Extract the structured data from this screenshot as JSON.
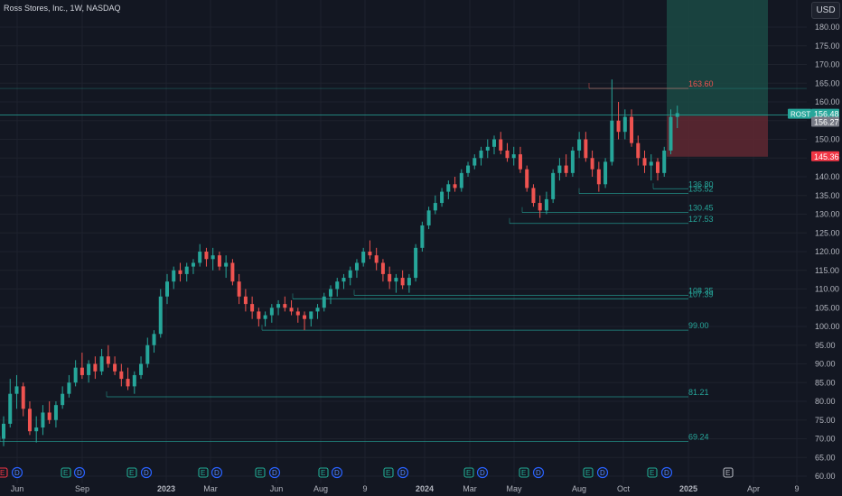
{
  "header": {
    "title": "Ross Stores, Inc., 1W, NASDAQ",
    "currency": "USD"
  },
  "colors": {
    "up": "#26a69a",
    "down": "#ef5350",
    "bg": "#131722",
    "grid": "#1e222d",
    "axis_text": "#b2b5be"
  },
  "events": [
    {
      "type": "E",
      "x": 3,
      "color": "red"
    },
    {
      "type": "D",
      "x": 19,
      "color": "blue"
    },
    {
      "type": "E",
      "x": 73,
      "color": "green"
    },
    {
      "type": "D",
      "x": 88,
      "color": "blue"
    },
    {
      "type": "E",
      "x": 146,
      "color": "green"
    },
    {
      "type": "D",
      "x": 162,
      "color": "blue"
    },
    {
      "type": "E",
      "x": 225,
      "color": "green"
    },
    {
      "type": "D",
      "x": 240,
      "color": "blue"
    },
    {
      "type": "E",
      "x": 288,
      "color": "green"
    },
    {
      "type": "D",
      "x": 304,
      "color": "blue"
    },
    {
      "type": "E",
      "x": 358,
      "color": "green"
    },
    {
      "type": "D",
      "x": 373,
      "color": "blue"
    },
    {
      "type": "E",
      "x": 430,
      "color": "green"
    },
    {
      "type": "D",
      "x": 446,
      "color": "blue"
    },
    {
      "type": "E",
      "x": 519,
      "color": "green"
    },
    {
      "type": "D",
      "x": 534,
      "color": "blue"
    },
    {
      "type": "E",
      "x": 580,
      "color": "green"
    },
    {
      "type": "D",
      "x": 596,
      "color": "blue"
    },
    {
      "type": "E",
      "x": 651,
      "color": "green"
    },
    {
      "type": "D",
      "x": 667,
      "color": "blue"
    },
    {
      "type": "E",
      "x": 722,
      "color": "green"
    },
    {
      "type": "D",
      "x": 738,
      "color": "blue"
    },
    {
      "type": "E",
      "x": 806,
      "color": "outline"
    }
  ],
  "chart_data": {
    "type": "candlestick",
    "symbol": "ROST",
    "ylim": [
      60,
      185
    ],
    "y_ticks": [
      180,
      175,
      170,
      165,
      160,
      155,
      150,
      145,
      140,
      135,
      130,
      125,
      120,
      115,
      110,
      105,
      100,
      95,
      90,
      85,
      80,
      75,
      70,
      65,
      60
    ],
    "x_ticks": [
      {
        "label": "Jun",
        "x": 19
      },
      {
        "label": "Sep",
        "x": 91
      },
      {
        "label": "2023",
        "x": 184
      },
      {
        "label": "Mar",
        "x": 233
      },
      {
        "label": "Jun",
        "x": 306
      },
      {
        "label": "Aug",
        "x": 355
      },
      {
        "label": "9",
        "x": 404
      },
      {
        "label": "2024",
        "x": 470
      },
      {
        "label": "Mar",
        "x": 520
      },
      {
        "label": "May",
        "x": 569
      },
      {
        "label": "Aug",
        "x": 641
      },
      {
        "label": "Oct",
        "x": 690
      },
      {
        "label": "2025",
        "x": 762
      },
      {
        "label": "Apr",
        "x": 834
      },
      {
        "label": "9",
        "x": 882
      }
    ],
    "candles": [
      [
        70,
        76,
        68,
        74
      ],
      [
        74,
        86,
        73,
        82
      ],
      [
        82,
        87,
        78,
        84
      ],
      [
        84,
        85,
        76,
        78
      ],
      [
        78,
        80,
        71,
        72
      ],
      [
        72,
        76,
        69,
        73
      ],
      [
        73,
        79,
        71,
        77
      ],
      [
        77,
        80,
        74,
        75
      ],
      [
        75,
        80,
        73,
        79
      ],
      [
        79,
        84,
        78,
        82
      ],
      [
        82,
        87,
        81,
        85
      ],
      [
        85,
        91,
        84,
        89
      ],
      [
        89,
        93,
        86,
        87
      ],
      [
        87,
        91,
        85,
        90
      ],
      [
        90,
        92,
        86,
        88
      ],
      [
        88,
        94,
        87,
        92
      ],
      [
        92,
        95,
        89,
        90
      ],
      [
        90,
        92,
        87,
        88
      ],
      [
        88,
        90,
        84,
        86
      ],
      [
        86,
        89,
        83,
        84
      ],
      [
        84,
        88,
        82,
        87
      ],
      [
        87,
        92,
        86,
        90
      ],
      [
        90,
        97,
        89,
        95
      ],
      [
        95,
        99,
        93,
        98
      ],
      [
        98,
        110,
        97,
        108
      ],
      [
        108,
        114,
        106,
        112
      ],
      [
        112,
        116,
        110,
        115
      ],
      [
        115,
        117,
        112,
        114
      ],
      [
        114,
        117,
        112,
        116
      ],
      [
        116,
        118,
        114,
        117
      ],
      [
        117,
        122,
        116,
        120
      ],
      [
        120,
        121,
        116,
        118
      ],
      [
        118,
        121,
        115,
        119
      ],
      [
        119,
        120,
        115,
        116
      ],
      [
        116,
        119,
        113,
        117
      ],
      [
        117,
        118,
        111,
        112
      ],
      [
        112,
        114,
        106,
        108
      ],
      [
        108,
        110,
        104,
        106
      ],
      [
        106,
        108,
        102,
        104
      ],
      [
        104,
        105,
        100,
        102
      ],
      [
        102,
        104,
        100,
        103
      ],
      [
        103,
        106,
        101,
        105
      ],
      [
        105,
        107,
        103,
        106
      ],
      [
        106,
        108,
        104,
        105
      ],
      [
        105,
        107,
        103,
        104
      ],
      [
        104,
        105,
        101,
        103
      ],
      [
        103,
        104,
        99,
        102
      ],
      [
        102,
        104,
        100,
        104
      ],
      [
        104,
        106,
        102,
        105
      ],
      [
        105,
        109,
        104,
        108
      ],
      [
        108,
        111,
        106,
        110
      ],
      [
        110,
        113,
        108,
        112
      ],
      [
        112,
        114,
        110,
        113
      ],
      [
        113,
        116,
        111,
        115
      ],
      [
        115,
        118,
        113,
        117
      ],
      [
        117,
        121,
        116,
        120
      ],
      [
        120,
        123,
        118,
        119
      ],
      [
        119,
        121,
        115,
        117
      ],
      [
        117,
        118,
        112,
        114
      ],
      [
        114,
        116,
        110,
        112
      ],
      [
        112,
        114,
        109,
        113
      ],
      [
        113,
        115,
        110,
        111
      ],
      [
        111,
        114,
        109,
        113
      ],
      [
        113,
        122,
        112,
        121
      ],
      [
        121,
        128,
        120,
        127
      ],
      [
        127,
        132,
        126,
        131
      ],
      [
        131,
        135,
        130,
        133
      ],
      [
        133,
        137,
        132,
        136
      ],
      [
        136,
        139,
        134,
        138
      ],
      [
        138,
        140,
        136,
        137
      ],
      [
        137,
        142,
        136,
        141
      ],
      [
        141,
        144,
        140,
        143
      ],
      [
        143,
        146,
        142,
        145
      ],
      [
        145,
        148,
        143,
        147
      ],
      [
        147,
        150,
        145,
        148
      ],
      [
        148,
        151,
        146,
        150
      ],
      [
        150,
        152,
        146,
        147
      ],
      [
        147,
        149,
        144,
        145
      ],
      [
        145,
        148,
        143,
        146
      ],
      [
        146,
        148,
        141,
        142
      ],
      [
        142,
        143,
        136,
        137
      ],
      [
        137,
        138,
        132,
        133
      ],
      [
        133,
        135,
        129,
        131
      ],
      [
        131,
        136,
        130,
        134
      ],
      [
        134,
        142,
        133,
        141
      ],
      [
        141,
        145,
        139,
        143
      ],
      [
        143,
        146,
        140,
        141
      ],
      [
        141,
        148,
        140,
        147
      ],
      [
        147,
        152,
        145,
        150
      ],
      [
        150,
        152,
        144,
        145
      ],
      [
        145,
        147,
        140,
        142
      ],
      [
        142,
        144,
        136,
        138
      ],
      [
        138,
        145,
        137,
        144
      ],
      [
        144,
        166,
        143,
        155
      ],
      [
        155,
        160,
        150,
        152
      ],
      [
        152,
        158,
        150,
        156
      ],
      [
        156,
        158,
        148,
        149
      ],
      [
        149,
        151,
        143,
        145
      ],
      [
        145,
        147,
        141,
        143
      ],
      [
        143,
        146,
        139,
        144
      ],
      [
        144,
        145,
        139,
        141
      ],
      [
        141,
        148,
        140,
        147
      ],
      [
        147,
        158,
        146,
        156
      ],
      [
        156,
        159,
        153,
        157
      ]
    ],
    "x_first": 4,
    "x_step": 7.24,
    "levels": [
      {
        "value": 163.6,
        "label": "163.60",
        "color": "#ef5350",
        "start": 652
      },
      {
        "value": 136.8,
        "label": "136.80",
        "color": "#26a69a",
        "start": 723
      },
      {
        "value": 135.52,
        "label": "135.52",
        "color": "#26a69a",
        "start": 641
      },
      {
        "value": 130.45,
        "label": "130.45",
        "color": "#26a69a",
        "start": 578
      },
      {
        "value": 127.53,
        "label": "127.53",
        "color": "#26a69a",
        "start": 564
      },
      {
        "value": 108.35,
        "label": "108.35",
        "color": "#26a69a",
        "start": 392
      },
      {
        "value": 107.39,
        "label": "107.39",
        "color": "#26a69a",
        "start": 324
      },
      {
        "value": 99.0,
        "label": "99.00",
        "color": "#26a69a",
        "start": 290
      },
      {
        "value": 81.21,
        "label": "81.21",
        "color": "#26a69a",
        "start": 118
      },
      {
        "value": 69.24,
        "label": "69.24",
        "color": "#26a69a",
        "start": 0
      }
    ],
    "position": {
      "entry": 156.27,
      "target": 185,
      "stop": 145.36,
      "x1": 738,
      "x2": 850
    },
    "badges": [
      {
        "label": "ROST",
        "value": "156.48",
        "color": "#26a69a",
        "text": "#ffffff"
      },
      {
        "label": "",
        "value": "156.27",
        "color": "#787b86",
        "text": "#ffffff"
      },
      {
        "label": "",
        "value": "145.36",
        "color": "#f23645",
        "text": "#ffffff"
      }
    ],
    "price_line": 156.48
  }
}
